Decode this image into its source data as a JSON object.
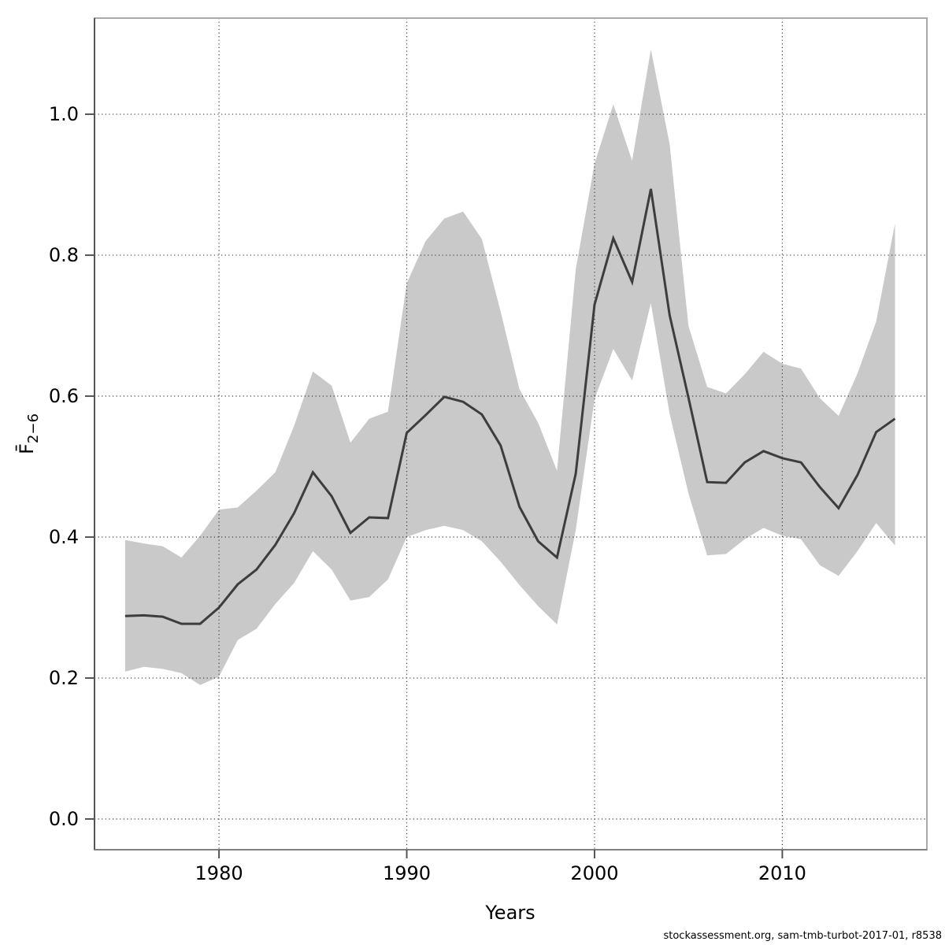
{
  "figure": {
    "background": "#ffffff",
    "caption": "stockassessment.org, sam-tmb-turbot-2017-01, r8538"
  },
  "chart_data": {
    "type": "line",
    "subtype": "line-with-confidence-band",
    "title": "",
    "xlabel": "Years",
    "ylabel_base": "F̄",
    "ylabel_sub": "2−6",
    "grid": "dotted",
    "legend": "none",
    "xlim": [
      1973.37,
      2017.7
    ],
    "ylim": [
      -0.0436,
      1.1364
    ],
    "x_tick_values": [
      1980,
      1990,
      2000,
      2010
    ],
    "x_tick_labels": [
      "1980",
      "1990",
      "2000",
      "2010"
    ],
    "y_tick_values": [
      0.0,
      0.2,
      0.4,
      0.6,
      0.8,
      1.0
    ],
    "y_tick_labels": [
      "0.0",
      "0.2",
      "0.4",
      "0.6",
      "0.8",
      "1.0"
    ],
    "x": [
      1975,
      1976,
      1977,
      1978,
      1979,
      1980,
      1981,
      1982,
      1983,
      1984,
      1985,
      1986,
      1987,
      1988,
      1989,
      1990,
      1991,
      1992,
      1993,
      1994,
      1995,
      1996,
      1997,
      1998,
      1999,
      2000,
      2001,
      2002,
      2003,
      2004,
      2005,
      2006,
      2007,
      2008,
      2009,
      2010,
      2011,
      2012,
      2013,
      2014,
      2015,
      2016
    ],
    "series": [
      {
        "name": "mean",
        "values": [
          0.288,
          0.289,
          0.287,
          0.277,
          0.277,
          0.3,
          0.333,
          0.354,
          0.389,
          0.434,
          0.492,
          0.458,
          0.406,
          0.428,
          0.427,
          0.548,
          0.573,
          0.599,
          0.592,
          0.574,
          0.53,
          0.443,
          0.394,
          0.371,
          0.49,
          0.73,
          0.824,
          0.762,
          0.894,
          0.715,
          0.598,
          0.478,
          0.477,
          0.506,
          0.522,
          0.512,
          0.506,
          0.471,
          0.441,
          0.488,
          0.549,
          0.568
        ]
      },
      {
        "name": "ci_lower",
        "values": [
          0.209,
          0.216,
          0.213,
          0.207,
          0.19,
          0.202,
          0.254,
          0.27,
          0.305,
          0.335,
          0.38,
          0.354,
          0.31,
          0.315,
          0.34,
          0.4,
          0.41,
          0.416,
          0.41,
          0.394,
          0.365,
          0.332,
          0.302,
          0.276,
          0.41,
          0.596,
          0.667,
          0.622,
          0.732,
          0.575,
          0.462,
          0.374,
          0.376,
          0.397,
          0.413,
          0.402,
          0.397,
          0.36,
          0.345,
          0.38,
          0.42,
          0.388
        ]
      },
      {
        "name": "ci_upper",
        "values": [
          0.396,
          0.391,
          0.387,
          0.371,
          0.402,
          0.439,
          0.442,
          0.466,
          0.492,
          0.558,
          0.635,
          0.615,
          0.534,
          0.568,
          0.578,
          0.76,
          0.82,
          0.852,
          0.862,
          0.823,
          0.72,
          0.61,
          0.562,
          0.494,
          0.78,
          0.93,
          1.014,
          0.934,
          1.092,
          0.958,
          0.7,
          0.613,
          0.604,
          0.631,
          0.663,
          0.646,
          0.639,
          0.597,
          0.572,
          0.632,
          0.706,
          0.845
        ]
      }
    ],
    "colors": {
      "band": "#c9c9c9",
      "line": "#3d3d3d",
      "grid": "#3f3f3f",
      "frame": "#aaaaaa",
      "axis_left": "#555555",
      "axis_bottom": "#808080",
      "tick": "#555555"
    }
  }
}
